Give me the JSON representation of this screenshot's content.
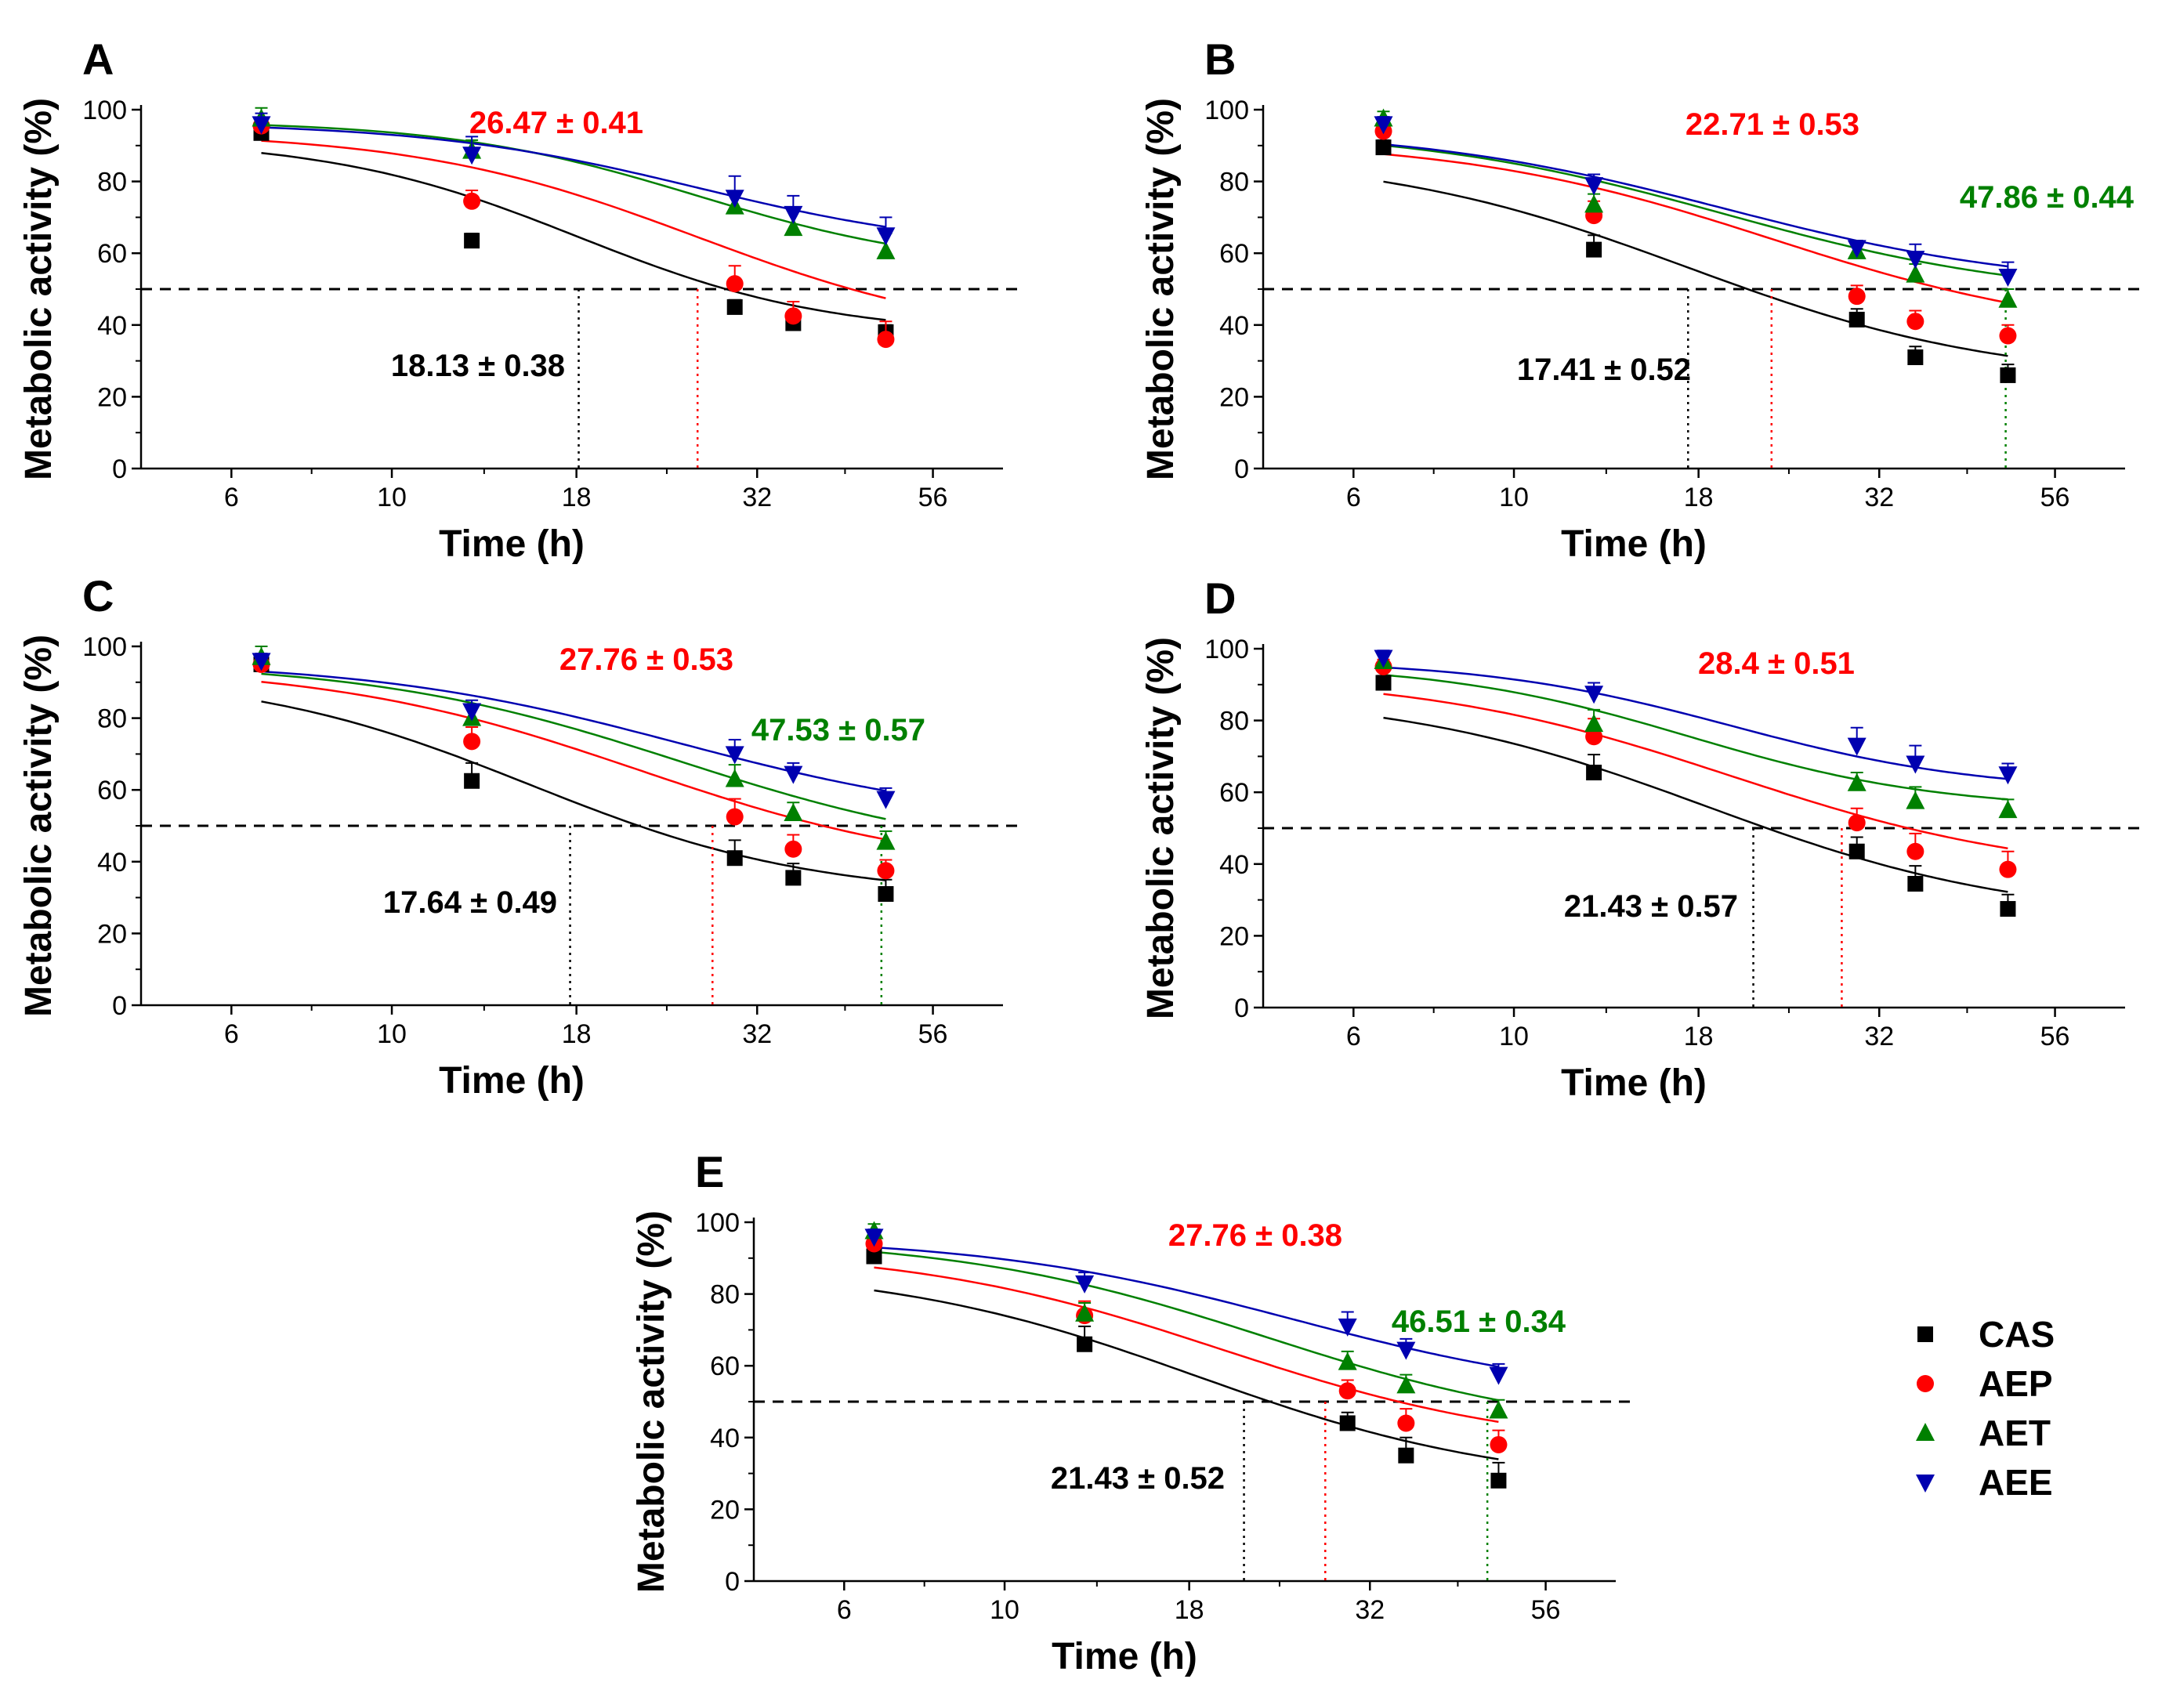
{
  "chart_data": [
    {
      "panel": "A",
      "type": "scatter",
      "xlabel": "Time (h)",
      "ylabel": "Metabolic activity (%)",
      "xscale": "log",
      "xlim": [
        4.5,
        70
      ],
      "ylim": [
        0,
        100
      ],
      "xticks": [
        6,
        10,
        18,
        32,
        56
      ],
      "yticks": [
        0,
        20,
        40,
        60,
        80,
        100
      ],
      "reference_line": 50,
      "x": [
        6.6,
        12.9,
        29.8,
        35.9,
        48.2
      ],
      "series": [
        {
          "name": "CAS",
          "color": "#000000",
          "marker": "square",
          "values": [
            93.5,
            63.5,
            45,
            40.5,
            38
          ],
          "errors": [
            2,
            2,
            2,
            2,
            2
          ],
          "fit": {
            "top": 92,
            "bottom": 37,
            "ec50": 18.13,
            "slope": 2.5
          }
        },
        {
          "name": "AEP",
          "color": "#ff0000",
          "marker": "circle",
          "values": [
            95.5,
            74.5,
            51.5,
            42.5,
            36
          ],
          "errors": [
            2,
            3,
            5,
            4,
            5
          ],
          "fit": {
            "top": 94,
            "bottom": 35,
            "ec50": 26.47,
            "slope": 2.2
          }
        },
        {
          "name": "AET",
          "color": "#008000",
          "marker": "triangle",
          "values": [
            97.5,
            88.5,
            73,
            67,
            60.5
          ],
          "errors": [
            3,
            3,
            4,
            5,
            5
          ],
          "fit": {
            "top": 97,
            "bottom": 55,
            "ec50": 26.47,
            "slope": 2.5
          }
        },
        {
          "name": "AEE",
          "color": "#0000b0",
          "marker": "tri-down",
          "values": [
            96,
            87.5,
            75.5,
            71,
            65
          ],
          "errors": [
            3,
            5,
            6,
            5,
            5
          ],
          "fit": {
            "top": 96.5,
            "bottom": 60,
            "ec50": 26.47,
            "slope": 2.3
          }
        }
      ],
      "annotations": [
        {
          "text": "26.47 ± 0.41",
          "color": "#ff0000",
          "x": 26.47
        },
        {
          "text": "18.13 ± 0.38",
          "color": "#000000",
          "x": 18.13
        }
      ]
    },
    {
      "panel": "B",
      "type": "scatter",
      "xlabel": "Time (h)",
      "ylabel": "Metabolic activity (%)",
      "xscale": "log",
      "xlim": [
        4.5,
        70
      ],
      "ylim": [
        0,
        100
      ],
      "xticks": [
        6,
        10,
        18,
        32,
        56
      ],
      "yticks": [
        0,
        20,
        40,
        60,
        80,
        100
      ],
      "reference_line": 50,
      "x": [
        6.6,
        12.9,
        29.8,
        35.9,
        48.2
      ],
      "series": [
        {
          "name": "CAS",
          "color": "#000000",
          "marker": "square",
          "values": [
            89.5,
            61,
            41.5,
            31,
            26
          ],
          "errors": [
            2,
            4,
            3,
            3,
            3
          ],
          "fit": {
            "top": 88,
            "bottom": 24,
            "ec50": 17.41,
            "slope": 2.0
          }
        },
        {
          "name": "AEP",
          "color": "#ff0000",
          "marker": "circle",
          "values": [
            94,
            70.5,
            48,
            41,
            37
          ],
          "errors": [
            2,
            4,
            3,
            3,
            3
          ],
          "fit": {
            "top": 92,
            "bottom": 36,
            "ec50": 22.71,
            "slope": 2.0
          }
        },
        {
          "name": "AET",
          "color": "#008000",
          "marker": "triangle",
          "values": [
            97.5,
            73.5,
            60.5,
            54,
            47
          ],
          "errors": [
            2,
            3,
            3,
            3,
            3
          ],
          "fit": {
            "top": 95,
            "bottom": 47,
            "ec50": 19.5,
            "slope": 2.0
          }
        },
        {
          "name": "AEE",
          "color": "#0000b0",
          "marker": "tri-down",
          "values": [
            96,
            79,
            61.5,
            58.5,
            53.5
          ],
          "errors": [
            2,
            3,
            2,
            4,
            4
          ],
          "fit": {
            "top": 95,
            "bottom": 50,
            "ec50": 19.5,
            "slope": 2.0
          }
        }
      ],
      "annotations": [
        {
          "text": "22.71 ± 0.53",
          "color": "#ff0000",
          "x": 22.71
        },
        {
          "text": "47.86 ± 0.44",
          "color": "#008000",
          "x": 47.86
        },
        {
          "text": "17.41 ± 0.52",
          "color": "#000000",
          "x": 17.41
        }
      ]
    },
    {
      "panel": "C",
      "type": "scatter",
      "xlabel": "Time (h)",
      "ylabel": "Metabolic activity (%)",
      "xscale": "log",
      "xlim": [
        4.5,
        70
      ],
      "ylim": [
        0,
        100
      ],
      "xticks": [
        6,
        10,
        18,
        32,
        56
      ],
      "yticks": [
        0,
        20,
        40,
        60,
        80,
        100
      ],
      "reference_line": 50,
      "x": [
        6.6,
        12.9,
        29.8,
        35.9,
        48.2
      ],
      "series": [
        {
          "name": "CAS",
          "color": "#000000",
          "marker": "square",
          "values": [
            95,
            62.5,
            41,
            35.5,
            31
          ],
          "errors": [
            2,
            5,
            5,
            4,
            4
          ],
          "fit": {
            "top": 93,
            "bottom": 30,
            "ec50": 15.5,
            "slope": 2.2
          }
        },
        {
          "name": "AEP",
          "color": "#ff0000",
          "marker": "circle",
          "values": [
            95,
            73.5,
            52.5,
            43.5,
            37.5
          ],
          "errors": [
            2,
            4,
            5,
            4,
            3
          ],
          "fit": {
            "top": 95,
            "bottom": 36,
            "ec50": 22,
            "slope": 2.0
          }
        },
        {
          "name": "AET",
          "color": "#008000",
          "marker": "triangle",
          "values": [
            97,
            80,
            63,
            53.5,
            45.5
          ],
          "errors": [
            3,
            3,
            4,
            3,
            3
          ],
          "fit": {
            "top": 96,
            "bottom": 40,
            "ec50": 25,
            "slope": 2.0
          }
        },
        {
          "name": "AEE",
          "color": "#0000b0",
          "marker": "tri-down",
          "values": [
            96,
            82,
            70,
            64.5,
            57.5
          ],
          "errors": [
            2,
            3,
            4,
            3,
            3
          ],
          "fit": {
            "top": 96,
            "bottom": 50,
            "ec50": 25,
            "slope": 2.0
          }
        }
      ],
      "annotations": [
        {
          "text": "27.76 ± 0.53",
          "color": "#ff0000",
          "x": 27.76
        },
        {
          "text": "47.53 ± 0.57",
          "color": "#008000",
          "x": 47.53
        },
        {
          "text": "17.64 ± 0.49",
          "color": "#000000",
          "x": 17.64
        }
      ]
    },
    {
      "panel": "D",
      "type": "scatter",
      "xlabel": "Time (h)",
      "ylabel": "Metabolic activity (%)",
      "xscale": "log",
      "xlim": [
        4.5,
        70
      ],
      "ylim": [
        0,
        100
      ],
      "xticks": [
        6,
        10,
        18,
        32,
        56
      ],
      "yticks": [
        0,
        20,
        40,
        60,
        80,
        100
      ],
      "reference_line": 50,
      "x": [
        6.6,
        12.9,
        29.8,
        35.9,
        48.2
      ],
      "series": [
        {
          "name": "CAS",
          "color": "#000000",
          "marker": "square",
          "values": [
            90.5,
            65.5,
            43.5,
            34.5,
            27.5
          ],
          "errors": [
            2,
            5,
            4,
            5,
            4
          ],
          "fit": {
            "top": 88,
            "bottom": 24,
            "ec50": 18.5,
            "slope": 2.0
          }
        },
        {
          "name": "AEP",
          "color": "#ff0000",
          "marker": "circle",
          "values": [
            95,
            75.5,
            51.5,
            43.5,
            38.5
          ],
          "errors": [
            2,
            5,
            4,
            5,
            5
          ],
          "fit": {
            "top": 93,
            "bottom": 36,
            "ec50": 20,
            "slope": 2.0
          }
        },
        {
          "name": "AET",
          "color": "#008000",
          "marker": "triangle",
          "values": [
            96.5,
            79,
            62.5,
            57.5,
            55
          ],
          "errors": [
            2,
            4,
            3,
            4,
            3
          ],
          "fit": {
            "top": 96,
            "bottom": 55,
            "ec50": 17.5,
            "slope": 2.5
          }
        },
        {
          "name": "AEE",
          "color": "#0000b0",
          "marker": "tri-down",
          "values": [
            97.5,
            87.5,
            73,
            68,
            65
          ],
          "errors": [
            2,
            3,
            5,
            5,
            3
          ],
          "fit": {
            "top": 97,
            "bottom": 60,
            "ec50": 20,
            "slope": 2.5
          }
        }
      ],
      "annotations": [
        {
          "text": "28.4 ± 0.51",
          "color": "#ff0000",
          "x": 28.4
        },
        {
          "text": "21.43 ± 0.57",
          "color": "#000000",
          "x": 21.43
        }
      ]
    },
    {
      "panel": "E",
      "type": "scatter",
      "xlabel": "Time (h)",
      "ylabel": "Metabolic activity (%)",
      "xscale": "log",
      "xlim": [
        4.5,
        70
      ],
      "ylim": [
        0,
        100
      ],
      "xticks": [
        6,
        10,
        18,
        32,
        56
      ],
      "yticks": [
        0,
        20,
        40,
        60,
        80,
        100
      ],
      "reference_line": 50,
      "x": [
        6.6,
        12.9,
        29.8,
        35.9,
        48.2
      ],
      "series": [
        {
          "name": "CAS",
          "color": "#000000",
          "marker": "square",
          "values": [
            90.5,
            66,
            44,
            35,
            28
          ],
          "errors": [
            3,
            5,
            3,
            5,
            5
          ],
          "fit": {
            "top": 88,
            "bottom": 26,
            "ec50": 18.5,
            "slope": 2.0
          }
        },
        {
          "name": "AEP",
          "color": "#ff0000",
          "marker": "circle",
          "values": [
            94,
            74,
            53,
            44,
            38
          ],
          "errors": [
            2,
            4,
            3,
            4,
            4
          ],
          "fit": {
            "top": 93,
            "bottom": 36,
            "ec50": 20,
            "slope": 2.0
          }
        },
        {
          "name": "AET",
          "color": "#008000",
          "marker": "triangle",
          "values": [
            97.5,
            74.5,
            61,
            54.5,
            47.5
          ],
          "errors": [
            2,
            3,
            3,
            3,
            3
          ],
          "fit": {
            "top": 96,
            "bottom": 40,
            "ec50": 23,
            "slope": 2.0
          }
        },
        {
          "name": "AEE",
          "color": "#0000b0",
          "marker": "tri-down",
          "values": [
            96,
            83,
            71,
            64.5,
            57.5
          ],
          "errors": [
            2,
            3,
            4,
            3,
            3
          ],
          "fit": {
            "top": 96,
            "bottom": 50,
            "ec50": 25,
            "slope": 2.0
          }
        }
      ],
      "annotations": [
        {
          "text": "27.76 ± 0.38",
          "color": "#ff0000",
          "x": 27.76
        },
        {
          "text": "46.51 ± 0.34",
          "color": "#008000",
          "x": 46.51
        },
        {
          "text": "21.43 ± 0.52",
          "color": "#000000",
          "x": 21.43
        }
      ]
    }
  ],
  "legend": [
    {
      "name": "CAS",
      "color": "#000000",
      "marker": "square"
    },
    {
      "name": "AEP",
      "color": "#ff0000",
      "marker": "circle"
    },
    {
      "name": "AET",
      "color": "#008000",
      "marker": "triangle"
    },
    {
      "name": "AEE",
      "color": "#0000b0",
      "marker": "tri-down"
    }
  ]
}
